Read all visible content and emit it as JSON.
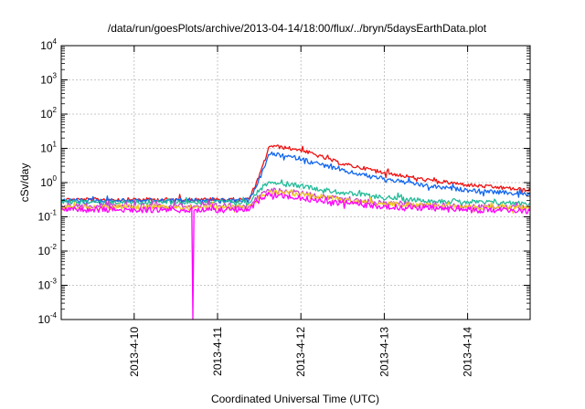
{
  "chart_data": {
    "type": "line",
    "title": "/data/run/goesPlots/archive/2013-04-14/18:00/flux/../bryn/5daysEarthData.plot",
    "xlabel": "Coordinated Universal Time (UTC)",
    "ylabel": "cSv/day",
    "x_scale": "time",
    "x_range": [
      "2013-04-09T03:00",
      "2013-04-14T18:00"
    ],
    "x_ticks": [
      "2013-4-10",
      "2013-4-11",
      "2013-4-12",
      "2013-4-13",
      "2013-4-14"
    ],
    "y_scale": "log",
    "ylim": [
      0.0001,
      10000
    ],
    "y_ticks": [
      {
        "base": "10",
        "exp": "-4"
      },
      {
        "base": "10",
        "exp": "-3"
      },
      {
        "base": "10",
        "exp": "-2"
      },
      {
        "base": "10",
        "exp": "-1"
      },
      {
        "base": "10",
        "exp": "0"
      },
      {
        "base": "10",
        "exp": "1"
      },
      {
        "base": "10",
        "exp": "2"
      },
      {
        "base": "10",
        "exp": "3"
      },
      {
        "base": "10",
        "exp": "4"
      }
    ],
    "grid": true,
    "series": [
      {
        "color": "#ee1111",
        "x": [
          "2013-04-09T03:00",
          "2013-04-11T09:00",
          "2013-04-11T12:00",
          "2013-04-11T15:00",
          "2013-04-12T00:00",
          "2013-04-12T12:00",
          "2013-04-13T00:00",
          "2013-04-13T12:00",
          "2013-04-14T00:00",
          "2013-04-14T18:00"
        ],
        "y": [
          0.32,
          0.32,
          1.5,
          12,
          9,
          3.5,
          2.0,
          1.2,
          0.85,
          0.6
        ]
      },
      {
        "color": "#1166ee",
        "x": [
          "2013-04-09T03:00",
          "2013-04-11T09:00",
          "2013-04-11T12:00",
          "2013-04-11T15:00",
          "2013-04-12T00:00",
          "2013-04-12T12:00",
          "2013-04-13T00:00",
          "2013-04-13T12:00",
          "2013-04-14T00:00",
          "2013-04-14T18:00"
        ],
        "y": [
          0.3,
          0.3,
          1.2,
          7,
          5,
          2.2,
          1.3,
          0.8,
          0.6,
          0.45
        ]
      },
      {
        "color": "#22bb99",
        "x": [
          "2013-04-09T03:00",
          "2013-04-11T09:00",
          "2013-04-11T12:00",
          "2013-04-11T15:00",
          "2013-04-12T00:00",
          "2013-04-12T12:00",
          "2013-04-13T00:00",
          "2013-04-13T12:00",
          "2013-04-14T00:00",
          "2013-04-14T18:00"
        ],
        "y": [
          0.27,
          0.27,
          0.6,
          1.1,
          0.8,
          0.5,
          0.37,
          0.3,
          0.27,
          0.25
        ]
      },
      {
        "color": "#cc44cc",
        "x": [
          "2013-04-09T03:00",
          "2013-04-11T09:00",
          "2013-04-11T12:00",
          "2013-04-11T15:00",
          "2013-04-12T00:00",
          "2013-04-12T12:00",
          "2013-04-13T00:00",
          "2013-04-13T12:00",
          "2013-04-14T00:00",
          "2013-04-14T18:00"
        ],
        "y": [
          0.21,
          0.21,
          0.4,
          0.6,
          0.5,
          0.32,
          0.26,
          0.22,
          0.2,
          0.19
        ]
      },
      {
        "color": "#eecc22",
        "x": [
          "2013-04-09T03:00",
          "2013-04-11T09:00",
          "2013-04-11T12:00",
          "2013-04-11T15:00",
          "2013-04-12T00:00",
          "2013-04-12T12:00",
          "2013-04-13T00:00",
          "2013-04-13T12:00",
          "2013-04-14T00:00",
          "2013-04-14T18:00"
        ],
        "y": [
          0.19,
          0.19,
          0.35,
          0.55,
          0.45,
          0.3,
          0.24,
          0.21,
          0.19,
          0.18
        ]
      },
      {
        "color": "#ff00ff",
        "x": [
          "2013-04-09T03:00",
          "2013-04-10T16:48",
          "2013-04-10T16:55",
          "2013-04-10T17:05",
          "2013-04-11T09:00",
          "2013-04-11T12:00",
          "2013-04-11T15:00",
          "2013-04-12T00:00",
          "2013-04-12T12:00",
          "2013-04-13T00:00",
          "2013-04-13T12:00",
          "2013-04-14T00:00",
          "2013-04-14T18:00"
        ],
        "y": [
          0.16,
          0.16,
          0.0001,
          0.16,
          0.16,
          0.3,
          0.45,
          0.36,
          0.25,
          0.2,
          0.18,
          0.16,
          0.15
        ]
      }
    ]
  }
}
